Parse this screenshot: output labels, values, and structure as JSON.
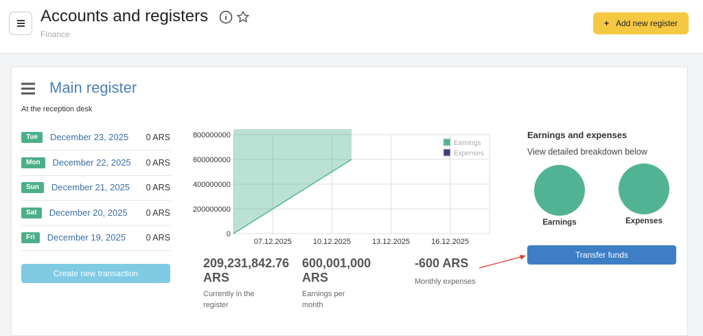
{
  "header": {
    "title": "Accounts and registers",
    "subtitle": "Finance",
    "add_button": "Add new register"
  },
  "register": {
    "title": "Main register",
    "subtitle": "At the reception desk",
    "days": [
      {
        "day": "Tue",
        "date": "December 23, 2025",
        "amount": "0 ARS"
      },
      {
        "day": "Mon",
        "date": "December 22, 2025",
        "amount": "0 ARS"
      },
      {
        "day": "Sun",
        "date": "December 21, 2025",
        "amount": "0 ARS"
      },
      {
        "day": "Sat",
        "date": "December 20, 2025",
        "amount": "0 ARS"
      },
      {
        "day": "Fri",
        "date": "December 19, 2025",
        "amount": "0 ARS"
      }
    ],
    "create_button": "Create new transaction"
  },
  "chart_data": {
    "type": "area",
    "x": [
      "05.12.2025",
      "06.12.2025",
      "07.12.2025",
      "08.12.2025",
      "09.12.2025",
      "10.12.2025",
      "11.12.2025"
    ],
    "series": [
      {
        "name": "Earnings",
        "color": "#52b394",
        "values": [
          0,
          100000000,
          200000000,
          300000000,
          400000000,
          500000000,
          600000000
        ]
      },
      {
        "name": "Expenses",
        "color": "#3b3f7a",
        "values": [
          null,
          null,
          null,
          null,
          null,
          null,
          null
        ]
      }
    ],
    "xlim": [
      "05.12.2025",
      "18.12.2025"
    ],
    "xticks": [
      "07.12.2025",
      "10.12.2025",
      "13.12.2025",
      "16.12.2025"
    ],
    "ylim": [
      0,
      800000000
    ],
    "yticks": [
      0,
      200000000,
      400000000,
      600000000,
      800000000
    ],
    "grid": true
  },
  "stats": [
    {
      "value": "209,231,842.76 ARS",
      "label": "Currently in the register"
    },
    {
      "value": "600,001,000 ARS",
      "label": "Earnings per month"
    },
    {
      "value": "-600 ARS",
      "label": "Monthly expenses"
    }
  ],
  "summary": {
    "title": "Earnings and expenses",
    "subtitle": "View detailed breakdown below",
    "circles": [
      "Earnings",
      "Expenses"
    ],
    "transfer_button": "Transfer funds"
  }
}
